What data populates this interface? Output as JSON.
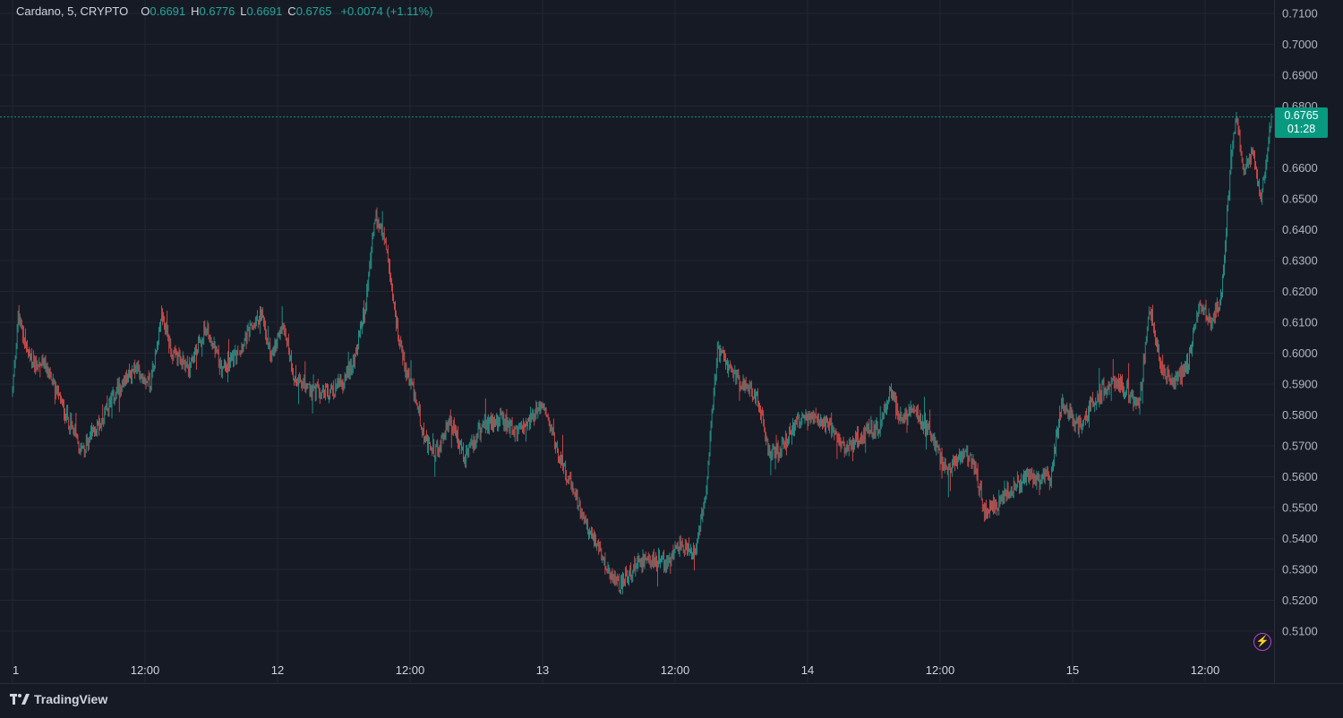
{
  "legend": {
    "symbol": "Cardano, 5, CRYPTO",
    "o_label": "O",
    "o_value": "0.6691",
    "h_label": "H",
    "h_value": "0.6776",
    "l_label": "L",
    "l_value": "0.6691",
    "c_label": "C",
    "c_value": "0.6765",
    "change": "+0.0074 (+1.11%)"
  },
  "last_price": {
    "price": "0.6765",
    "countdown": "01:28"
  },
  "footer": {
    "brand": "TradingView"
  },
  "icons": {
    "alert": "lightning-icon",
    "logo": "tradingview-logo-icon"
  },
  "colors": {
    "up": "#26a69a",
    "down": "#ef5350",
    "background": "#161a25",
    "grid": "#232632",
    "last_price": "#089981"
  },
  "chart_data": {
    "type": "candlestick",
    "interval": "5",
    "y_ticks": [
      "0.7100",
      "0.7000",
      "0.6900",
      "0.6800",
      "0.6600",
      "0.6500",
      "0.6400",
      "0.6300",
      "0.6200",
      "0.6100",
      "0.6000",
      "0.5900",
      "0.5800",
      "0.5700",
      "0.5600",
      "0.5500",
      "0.5400",
      "0.5300",
      "0.5200",
      "0.5100"
    ],
    "ylim": [
      0.51,
      0.71
    ],
    "x_ticks": [
      "1",
      "12:00",
      "12",
      "12:00",
      "13",
      "12:00",
      "14",
      "12:00",
      "15",
      "12:00"
    ],
    "x_tick_positions_hours": [
      0,
      12,
      24,
      36,
      48,
      60,
      72,
      84,
      96,
      108
    ],
    "xlim_hours": [
      0,
      114
    ],
    "last_price": 0.6765,
    "path_anchors": [
      [
        0,
        0.588
      ],
      [
        0.5,
        0.612
      ],
      [
        1.5,
        0.598
      ],
      [
        3,
        0.596
      ],
      [
        4.5,
        0.583
      ],
      [
        5.5,
        0.575
      ],
      [
        6.2,
        0.568
      ],
      [
        7,
        0.573
      ],
      [
        8,
        0.578
      ],
      [
        9.5,
        0.588
      ],
      [
        11,
        0.595
      ],
      [
        12.5,
        0.591
      ],
      [
        13.5,
        0.613
      ],
      [
        14.5,
        0.599
      ],
      [
        16,
        0.596
      ],
      [
        17.5,
        0.608
      ],
      [
        19,
        0.595
      ],
      [
        20.5,
        0.601
      ],
      [
        21.5,
        0.607
      ],
      [
        22.5,
        0.613
      ],
      [
        23.5,
        0.598
      ],
      [
        24.5,
        0.61
      ],
      [
        25.5,
        0.592
      ],
      [
        27,
        0.588
      ],
      [
        28.5,
        0.587
      ],
      [
        30,
        0.59
      ],
      [
        31,
        0.599
      ],
      [
        32,
        0.615
      ],
      [
        32.8,
        0.645
      ],
      [
        33.8,
        0.635
      ],
      [
        34.5,
        0.615
      ],
      [
        35.5,
        0.596
      ],
      [
        36.5,
        0.585
      ],
      [
        37.5,
        0.57
      ],
      [
        38.5,
        0.568
      ],
      [
        39.5,
        0.579
      ],
      [
        41,
        0.566
      ],
      [
        42.5,
        0.576
      ],
      [
        44,
        0.579
      ],
      [
        45.5,
        0.574
      ],
      [
        47,
        0.579
      ],
      [
        48,
        0.584
      ],
      [
        49,
        0.572
      ],
      [
        50.5,
        0.558
      ],
      [
        51.5,
        0.548
      ],
      [
        52.5,
        0.541
      ],
      [
        53.5,
        0.532
      ],
      [
        55,
        0.525
      ],
      [
        56.5,
        0.532
      ],
      [
        58,
        0.533
      ],
      [
        59.5,
        0.533
      ],
      [
        60.5,
        0.538
      ],
      [
        61.8,
        0.535
      ],
      [
        62.8,
        0.556
      ],
      [
        63.8,
        0.601
      ],
      [
        64.5,
        0.597
      ],
      [
        66,
        0.59
      ],
      [
        67.5,
        0.585
      ],
      [
        68.5,
        0.568
      ],
      [
        69.5,
        0.568
      ],
      [
        71,
        0.578
      ],
      [
        72.5,
        0.579
      ],
      [
        74,
        0.576
      ],
      [
        75.5,
        0.569
      ],
      [
        77,
        0.574
      ],
      [
        78.5,
        0.576
      ],
      [
        79.5,
        0.588
      ],
      [
        80.5,
        0.578
      ],
      [
        81.5,
        0.582
      ],
      [
        83,
        0.575
      ],
      [
        84.5,
        0.562
      ],
      [
        86,
        0.568
      ],
      [
        87,
        0.565
      ],
      [
        88,
        0.549
      ],
      [
        89.5,
        0.552
      ],
      [
        91,
        0.558
      ],
      [
        92.5,
        0.56
      ],
      [
        94,
        0.559
      ],
      [
        95,
        0.584
      ],
      [
        96.5,
        0.576
      ],
      [
        98,
        0.585
      ],
      [
        99.5,
        0.591
      ],
      [
        101,
        0.588
      ],
      [
        102,
        0.582
      ],
      [
        103,
        0.615
      ],
      [
        104,
        0.596
      ],
      [
        105,
        0.59
      ],
      [
        106.5,
        0.597
      ],
      [
        107.5,
        0.617
      ],
      [
        108.5,
        0.61
      ],
      [
        109.5,
        0.619
      ],
      [
        110.3,
        0.66
      ],
      [
        110.8,
        0.678
      ],
      [
        111.5,
        0.66
      ],
      [
        112.3,
        0.665
      ],
      [
        113,
        0.65
      ],
      [
        113.6,
        0.662
      ],
      [
        114,
        0.6765
      ]
    ]
  }
}
